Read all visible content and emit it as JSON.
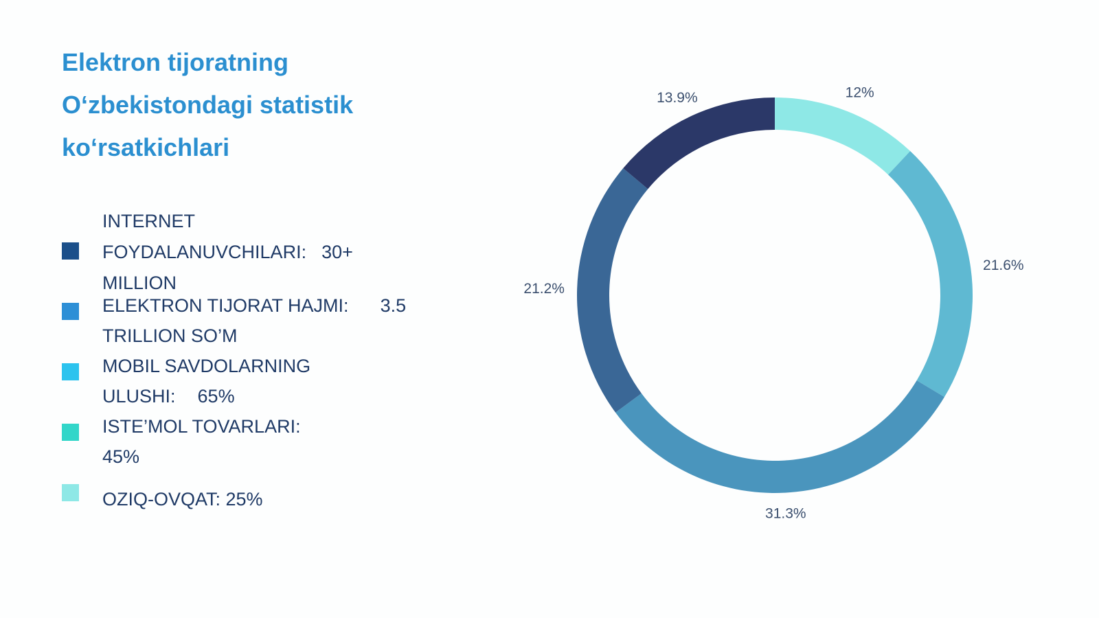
{
  "title_lines": [
    "Elektron tijoratning",
    "O‘zbekistondagi statistik",
    "ko‘rsatkichlari"
  ],
  "legend": [
    {
      "lines": [
        "INTERNET",
        "FOYDALANUVCHILARI:",
        "MILLION"
      ],
      "value": "30+",
      "color": "#1b4f8a"
    },
    {
      "lines": [
        "ELEKTRON TIJORAT HAJMI:",
        "TRILLION SO’M"
      ],
      "value": "3.5",
      "color": "#2d8fd6"
    },
    {
      "lines": [
        "MOBIL SAVDOLARNING",
        "ULUSHI:"
      ],
      "value": "65%",
      "color": "#2cc3ee"
    },
    {
      "lines": [
        "ISTE’MOL TOVARLARI:",
        "45%"
      ],
      "value": "",
      "color": "#32d6c9"
    },
    {
      "lines": [
        "OZIQ-OVQAT: 25%"
      ],
      "value": "",
      "color": "#8ee8e6"
    }
  ],
  "chart_data": {
    "type": "pie",
    "style": "donut",
    "start": "top",
    "direction": "clockwise",
    "slices": [
      {
        "label": "12%",
        "value": 12.0,
        "color": "#8ee8e6"
      },
      {
        "label": "21.6%",
        "value": 21.6,
        "color": "#5fb9d2"
      },
      {
        "label": "31.3%",
        "value": 31.3,
        "color": "#4a95bd"
      },
      {
        "label": "21.2%",
        "value": 21.2,
        "color": "#3a6796"
      },
      {
        "label": "13.9%",
        "value": 13.9,
        "color": "#2b3868"
      }
    ]
  }
}
